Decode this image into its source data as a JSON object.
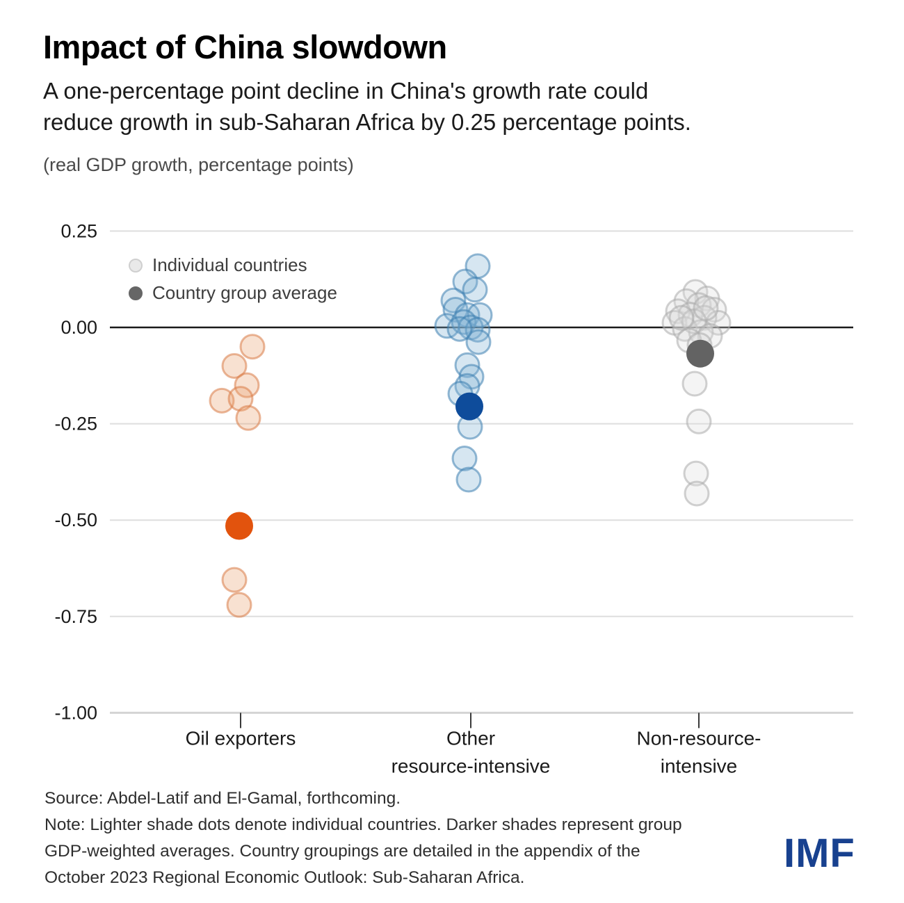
{
  "header": {
    "title": "Impact of China slowdown",
    "subtitle_line1": "A one-percentage point decline in China's growth rate could",
    "subtitle_line2": "reduce growth in sub-Saharan Africa by 0.25 percentage points.",
    "units": "(real GDP growth, percentage points)"
  },
  "legend": {
    "items": [
      {
        "label": "Individual countries",
        "fill": "#e9e9e9",
        "border": "#cfcfcf"
      },
      {
        "label": "Country group average",
        "fill": "#666666",
        "border": "#666666"
      }
    ]
  },
  "chart_data": {
    "type": "scatter",
    "title": "Impact of China slowdown",
    "ylabel": "(real GDP growth, percentage points)",
    "ylim": [
      -1.0,
      0.25
    ],
    "grid": "horizontal",
    "legend_position": "top-left",
    "yticks": [
      {
        "label": "0.25",
        "value": 0.25
      },
      {
        "label": "0.00",
        "value": 0.0
      },
      {
        "label": "-0.25",
        "value": -0.25
      },
      {
        "label": "-0.50",
        "value": -0.5
      },
      {
        "label": "-0.75",
        "value": -0.75
      },
      {
        "label": "-1.00",
        "value": -1.0
      }
    ],
    "colors": {
      "grid": "#dedede",
      "baseline": "#d4d4d4",
      "zero_line": "#1a1a1a",
      "tick_text": "#1a1a1a",
      "category_text": "#1a1a1a"
    },
    "groups": [
      {
        "category": "Oil exporters",
        "label_lines": [
          "Oil exporters"
        ],
        "average": -0.515,
        "avg_dx": -2,
        "avg_color": "#e2530d",
        "ind_stroke": "#d97b47",
        "ind_fill": "#e8a16f",
        "individuals": [
          [
            17,
            -0.05
          ],
          [
            -9,
            -0.1
          ],
          [
            9,
            -0.15
          ],
          [
            -27,
            -0.19
          ],
          [
            0,
            -0.185
          ],
          [
            11,
            -0.235
          ],
          [
            -9,
            -0.655
          ],
          [
            -2,
            -0.72
          ]
        ]
      },
      {
        "category": "Other resource-intensive",
        "label_lines": [
          "Other",
          "resource-intensive"
        ],
        "average": -0.205,
        "avg_dx": -2,
        "avg_color": "#0e4c9b",
        "ind_stroke": "#3e7fb1",
        "ind_fill": "#7fb0d5",
        "individuals": [
          [
            10,
            0.159
          ],
          [
            -8,
            0.119
          ],
          [
            6,
            0.098
          ],
          [
            -25,
            0.07
          ],
          [
            -22,
            0.046
          ],
          [
            -5,
            0.032
          ],
          [
            13,
            0.032
          ],
          [
            -34,
            0.004
          ],
          [
            -10,
            0.014
          ],
          [
            0,
            0.0
          ],
          [
            10,
            -0.006
          ],
          [
            11,
            -0.038
          ],
          [
            -16,
            -0.004
          ],
          [
            -5,
            -0.098
          ],
          [
            1,
            -0.128
          ],
          [
            -5,
            -0.152
          ],
          [
            -15,
            -0.172
          ],
          [
            -1,
            -0.258
          ],
          [
            -9,
            -0.34
          ],
          [
            -3,
            -0.395
          ]
        ]
      },
      {
        "category": "Non-resource-intensive",
        "label_lines": [
          "Non-resource-",
          "intensive"
        ],
        "average": -0.068,
        "avg_dx": 2,
        "avg_color": "#636363",
        "ind_stroke": "#ababab",
        "ind_fill": "#dedede",
        "individuals": [
          [
            -5,
            0.092
          ],
          [
            12,
            0.075
          ],
          [
            -18,
            0.068
          ],
          [
            0,
            0.058
          ],
          [
            -30,
            0.042
          ],
          [
            22,
            0.046
          ],
          [
            -12,
            0.033
          ],
          [
            8,
            0.025
          ],
          [
            -35,
            0.012
          ],
          [
            28,
            0.012
          ],
          [
            -20,
            -0.004
          ],
          [
            3,
            -0.012
          ],
          [
            -7,
            0.016
          ],
          [
            16,
            -0.022
          ],
          [
            -14,
            -0.034
          ],
          [
            1,
            -0.046
          ],
          [
            10,
            0.05
          ],
          [
            -25,
            0.025
          ],
          [
            -6,
            -0.146
          ],
          [
            0,
            -0.244
          ],
          [
            -4,
            -0.379
          ],
          [
            -3,
            -0.431
          ]
        ]
      }
    ]
  },
  "source": {
    "line1": "Source: Abdel-Latif and El-Gamal, forthcoming.",
    "line2": "Note: Lighter shade dots denote individual countries. Darker shades represent group",
    "line3": "GDP-weighted averages. Country groupings are detailed in the appendix of the",
    "line4": "October 2023 Regional Economic Outlook: Sub-Saharan Africa."
  },
  "logo": {
    "text": "IMF",
    "color": "#18418f"
  }
}
